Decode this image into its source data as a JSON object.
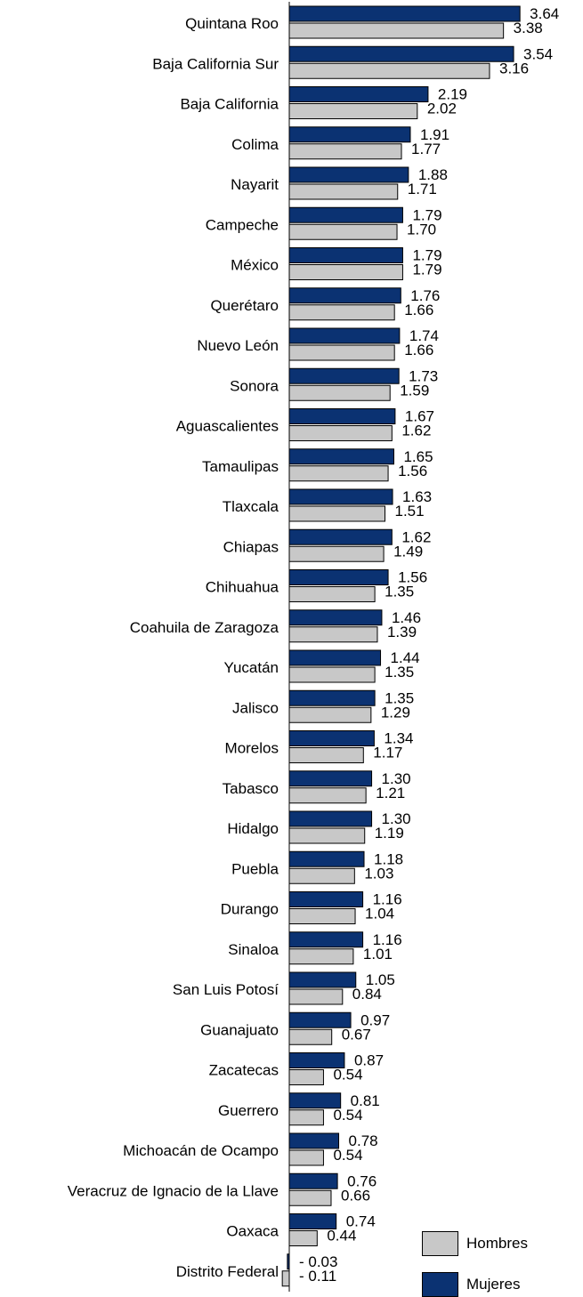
{
  "chart_data": {
    "type": "bar",
    "orientation": "horizontal",
    "categories": [
      "Quintana Roo",
      "Baja California Sur",
      "Baja California",
      "Colima",
      "Nayarit",
      "Campeche",
      "México",
      "Querétaro",
      "Nuevo León",
      "Sonora",
      "Aguascalientes",
      "Tamaulipas",
      "Tlaxcala",
      "Chiapas",
      "Chihuahua",
      "Coahuila de Zaragoza",
      "Yucatán",
      "Jalisco",
      "Morelos",
      "Tabasco",
      "Hidalgo",
      "Puebla",
      "Durango",
      "Sinaloa",
      "San Luis Potosí",
      "Guanajuato",
      "Zacatecas",
      "Guerrero",
      "Michoacán de Ocampo",
      "Veracruz de Ignacio de la Llave",
      "Oaxaca",
      "Distrito Federal"
    ],
    "series": [
      {
        "name": "Mujeres",
        "color": "#0b3272",
        "values": [
          3.64,
          3.54,
          2.19,
          1.91,
          1.88,
          1.79,
          1.79,
          1.76,
          1.74,
          1.73,
          1.67,
          1.65,
          1.63,
          1.62,
          1.56,
          1.46,
          1.44,
          1.35,
          1.34,
          1.3,
          1.3,
          1.18,
          1.16,
          1.16,
          1.05,
          0.97,
          0.87,
          0.81,
          0.78,
          0.76,
          0.74,
          -0.03
        ],
        "labels": [
          "3.64",
          "3.54",
          "2.19",
          "1.91",
          "1.88",
          "1.79",
          "1.79",
          "1.76",
          "1.74",
          "1.73",
          "1.67",
          "1.65",
          "1.63",
          "1.62",
          "1.56",
          "1.46",
          "1.44",
          "1.35",
          "1.34",
          "1.30",
          "1.30",
          "1.18",
          "1.16",
          "1.16",
          "1.05",
          "0.97",
          "0.87",
          "0.81",
          "0.78",
          "0.76",
          "0.74",
          "- 0.03"
        ]
      },
      {
        "name": "Hombres",
        "color": "#c8c8c8",
        "values": [
          3.38,
          3.16,
          2.02,
          1.77,
          1.71,
          1.7,
          1.79,
          1.66,
          1.66,
          1.59,
          1.62,
          1.56,
          1.51,
          1.49,
          1.35,
          1.39,
          1.35,
          1.29,
          1.17,
          1.21,
          1.19,
          1.03,
          1.04,
          1.01,
          0.84,
          0.67,
          0.54,
          0.54,
          0.54,
          0.66,
          0.44,
          -0.11
        ],
        "labels": [
          "3.38",
          "3.16",
          "2.02",
          "1.77",
          "1.71",
          "1.70",
          "1.79",
          "1.66",
          "1.66",
          "1.59",
          "1.62",
          "1.56",
          "1.51",
          "1.49",
          "1.35",
          "1.39",
          "1.35",
          "1.29",
          "1.17",
          "1.21",
          "1.19",
          "1.03",
          "1.04",
          "1.01",
          "0.84",
          "0.67",
          "0.54",
          "0.54",
          "0.54",
          "0.66",
          "0.44",
          "- 0.11"
        ]
      }
    ],
    "legend": {
      "position": "bottom-right",
      "items": [
        {
          "label": "Hombres",
          "color": "#c8c8c8"
        },
        {
          "label": "Mujeres",
          "color": "#0b3272"
        }
      ]
    },
    "grid": false
  }
}
